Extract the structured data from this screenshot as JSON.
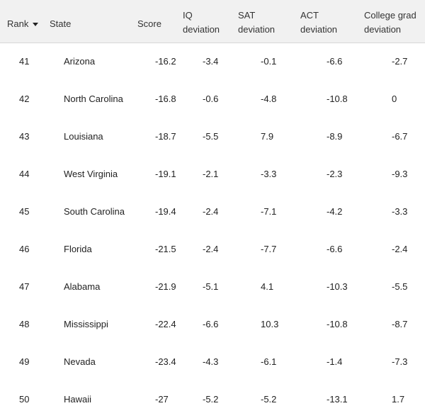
{
  "columns": {
    "rank": "Rank",
    "state": "State",
    "score": "Score",
    "iq": [
      "IQ",
      "deviation"
    ],
    "sat": [
      "SAT",
      "deviation"
    ],
    "act": [
      "ACT",
      "deviation"
    ],
    "college": [
      "College grad",
      "deviation"
    ]
  },
  "sort_icon": "caret-down-icon",
  "rows": [
    {
      "rank": "41",
      "state": "Arizona",
      "score": "-16.2",
      "iq": "-3.4",
      "sat": "-0.1",
      "act": "-6.6",
      "college": "-2.7"
    },
    {
      "rank": "42",
      "state": "North Carolina",
      "score": "-16.8",
      "iq": "-0.6",
      "sat": "-4.8",
      "act": "-10.8",
      "college": "0"
    },
    {
      "rank": "43",
      "state": "Louisiana",
      "score": "-18.7",
      "iq": "-5.5",
      "sat": "7.9",
      "act": "-8.9",
      "college": "-6.7"
    },
    {
      "rank": "44",
      "state": "West Virginia",
      "score": "-19.1",
      "iq": "-2.1",
      "sat": "-3.3",
      "act": "-2.3",
      "college": "-9.3"
    },
    {
      "rank": "45",
      "state": "South Carolina",
      "score": "-19.4",
      "iq": "-2.4",
      "sat": "-7.1",
      "act": "-4.2",
      "college": "-3.3"
    },
    {
      "rank": "46",
      "state": "Florida",
      "score": "-21.5",
      "iq": "-2.4",
      "sat": "-7.7",
      "act": "-6.6",
      "college": "-2.4"
    },
    {
      "rank": "47",
      "state": "Alabama",
      "score": "-21.9",
      "iq": "-5.1",
      "sat": "4.1",
      "act": "-10.3",
      "college": "-5.5"
    },
    {
      "rank": "48",
      "state": "Mississippi",
      "score": "-22.4",
      "iq": "-6.6",
      "sat": "10.3",
      "act": "-10.8",
      "college": "-8.7"
    },
    {
      "rank": "49",
      "state": "Nevada",
      "score": "-23.4",
      "iq": "-4.3",
      "sat": "-6.1",
      "act": "-1.4",
      "college": "-7.3"
    },
    {
      "rank": "50",
      "state": "Hawaii",
      "score": "-27",
      "iq": "-5.2",
      "sat": "-5.2",
      "act": "-13.1",
      "college": "1.7"
    }
  ]
}
